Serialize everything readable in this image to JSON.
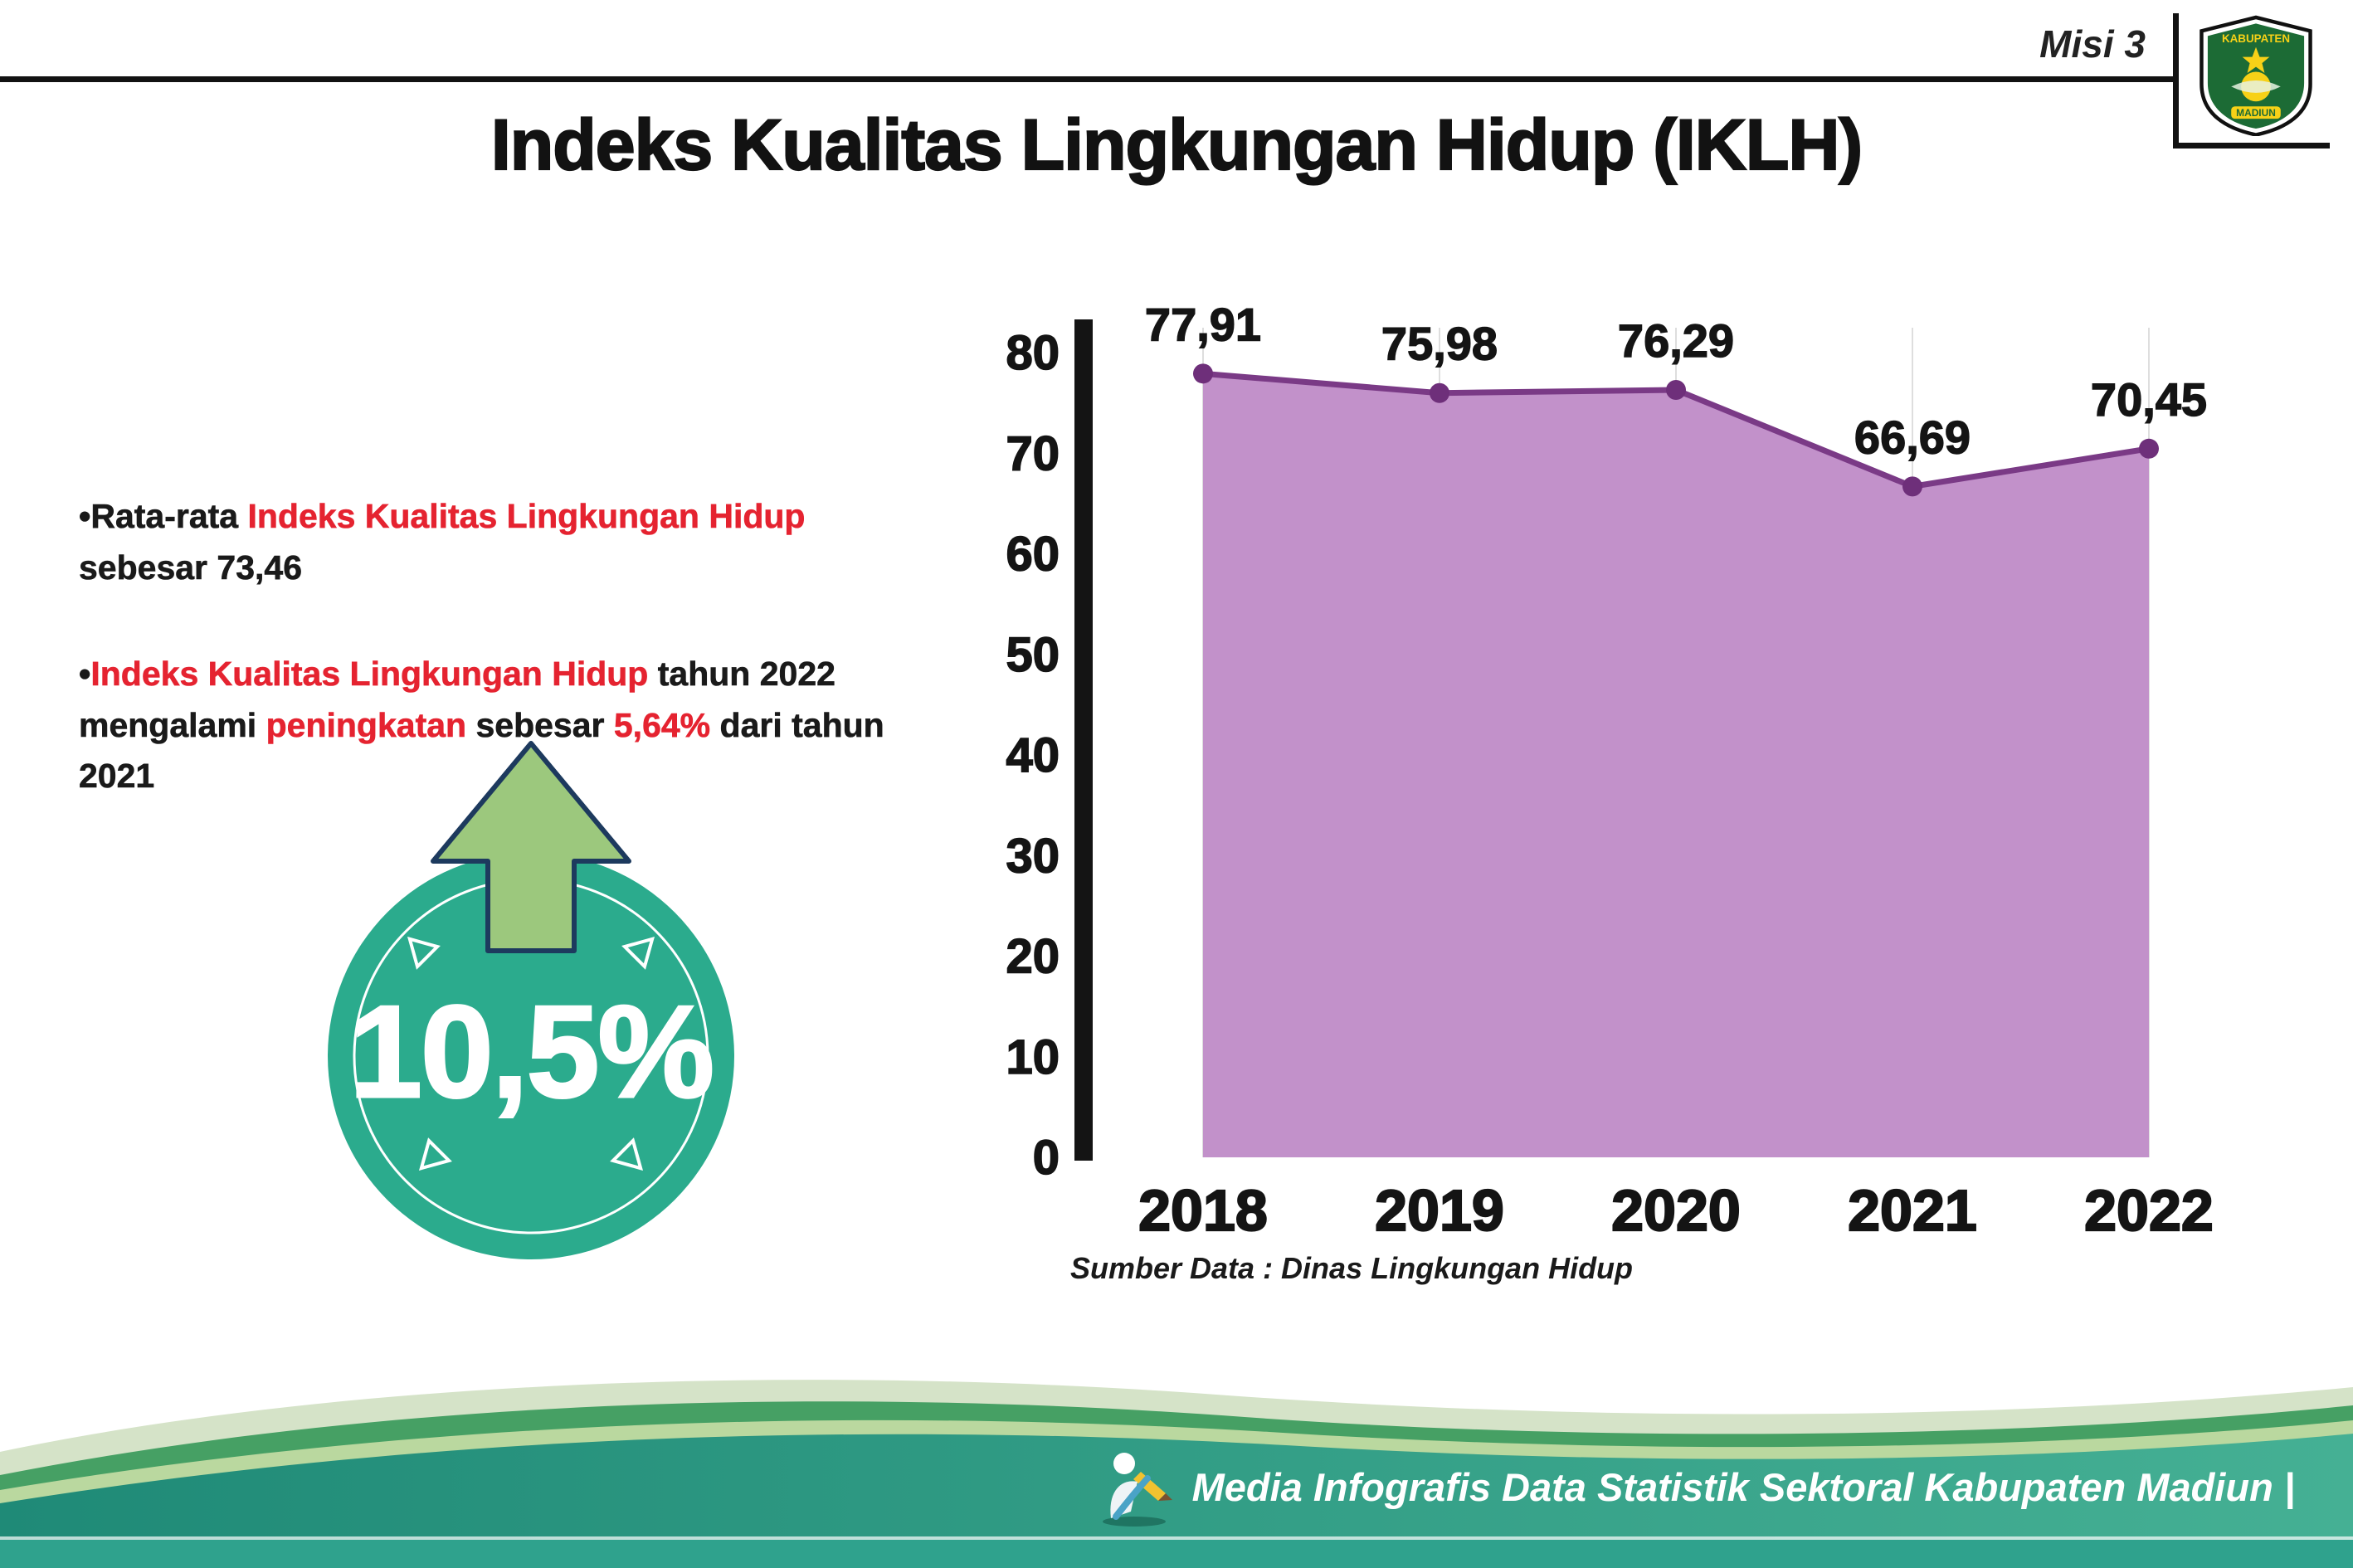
{
  "header": {
    "misi": "Misi 3",
    "title": "Indeks Kualitas Lingkungan Hidup (IKLH)",
    "logo": {
      "top_text": "KABUPATEN",
      "bottom_text": "MADIUN"
    }
  },
  "bullets": {
    "b1": {
      "pre": "•Rata-rata ",
      "red": "Indeks Kualitas Lingkungan Hidup",
      "post": " sebesar 73,46"
    },
    "b2": {
      "pre": "•",
      "red1": "Indeks Kualitas Lingkungan Hidup",
      "t1": " tahun 2022 mengalami ",
      "red2": "peningkatan",
      "t2": " sebesar ",
      "red3": "5,64%",
      "t3": " dari tahun 2021"
    }
  },
  "badge": {
    "value": "10,5%"
  },
  "chart_data": {
    "type": "area",
    "categories": [
      "2018",
      "2019",
      "2020",
      "2021",
      "2022"
    ],
    "values": [
      77.91,
      75.98,
      76.29,
      66.69,
      70.45
    ],
    "value_labels": [
      "77,91",
      "75,98",
      "76,29",
      "66,69",
      "70,45"
    ],
    "title": "Indeks Kualitas Lingkungan Hidup (IKLH)",
    "xlabel": "",
    "ylabel": "",
    "ylim": [
      0,
      80
    ],
    "yticks": [
      0,
      10,
      20,
      30,
      40,
      50,
      60,
      70,
      80
    ],
    "grid": "vertical-light",
    "legend": "none",
    "fill_color": "#c291ca",
    "line_color": "#7a3a86",
    "point_color": "#6e2f7a"
  },
  "source": "Sumber Data : Dinas Lingkungan Hidup",
  "footer": {
    "text": "Media Infografis Data Statistik Sektoral Kabupaten Madiun |"
  },
  "colors": {
    "accent_red": "#e52330",
    "badge_teal": "#2bab8d",
    "arrow_green": "#9cc87d",
    "arrow_outline": "#1d3a5e",
    "footer_sage": "#d5e3c8",
    "footer_green": "#46a064",
    "footer_light_green": "#bad89f",
    "footer_teal_dark": "#1f8a77",
    "footer_teal_light": "#45b094",
    "footer_strip": "#2fa28d"
  }
}
